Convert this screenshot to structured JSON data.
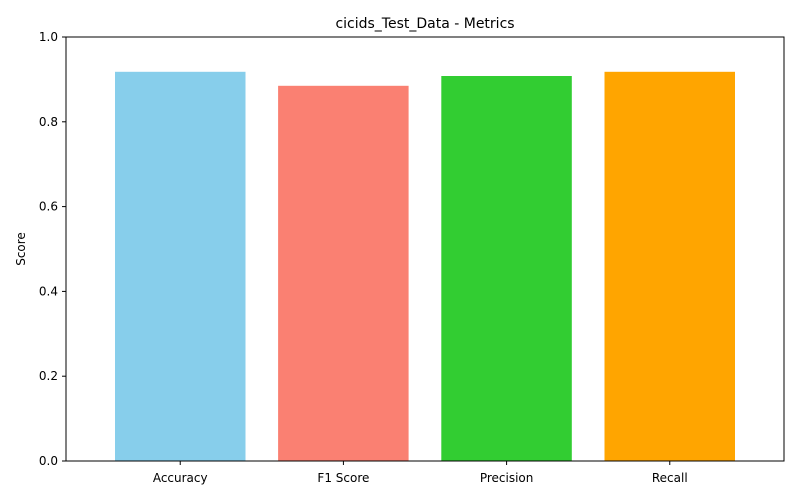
{
  "chart_data": {
    "type": "bar",
    "title": "cicids_Test_Data - Metrics",
    "xlabel": "",
    "ylabel": "Score",
    "categories": [
      "Accuracy",
      "F1 Score",
      "Precision",
      "Recall"
    ],
    "values": [
      0.918,
      0.885,
      0.908,
      0.918
    ],
    "colors": [
      "#87CEEB",
      "#FA8072",
      "#32CD32",
      "#FFA500"
    ],
    "ylim": [
      0,
      1.0
    ],
    "yticks": [
      "0.0",
      "0.2",
      "0.4",
      "0.6",
      "0.8",
      "1.0"
    ],
    "grid": false,
    "legend": "none"
  }
}
